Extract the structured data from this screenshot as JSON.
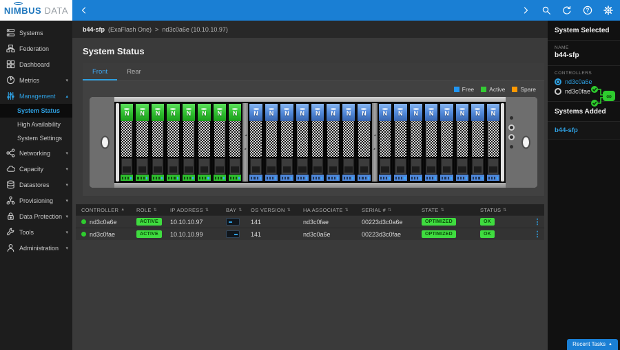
{
  "colors": {
    "topbar_blue": "#1a7fd4",
    "accent_blue": "#2e9fe0",
    "free": "#4f87d9",
    "active": "#2ebe2e",
    "spare": "#ff9800",
    "legend_free": "#2196f3",
    "legend_active": "#33cc33",
    "legend_spare": "#ff9800"
  },
  "brand": {
    "primary": "NIMBUS",
    "secondary": "DATA"
  },
  "topbar": {
    "collapse_icon": "chevron-left",
    "icons": [
      {
        "name": "chevron-right"
      },
      {
        "name": "search"
      },
      {
        "name": "refresh"
      },
      {
        "name": "help"
      },
      {
        "name": "settings"
      }
    ]
  },
  "sidebar": {
    "items": [
      {
        "id": "systems",
        "label": "Systems",
        "icon": "systems"
      },
      {
        "id": "federation",
        "label": "Federation",
        "icon": "federation"
      },
      {
        "id": "dashboard",
        "label": "Dashboard",
        "icon": "dashboard"
      },
      {
        "id": "metrics",
        "label": "Metrics",
        "icon": "metrics",
        "expandable": true,
        "expanded": false
      },
      {
        "id": "management",
        "label": "Management",
        "icon": "management",
        "expandable": true,
        "expanded": true,
        "active": true,
        "children": [
          {
            "id": "system-status",
            "label": "System Status",
            "active": true
          },
          {
            "id": "high-availability",
            "label": "High Availability"
          },
          {
            "id": "system-settings",
            "label": "System Settings"
          }
        ]
      },
      {
        "id": "networking",
        "label": "Networking",
        "icon": "networking",
        "expandable": true
      },
      {
        "id": "capacity",
        "label": "Capacity",
        "icon": "capacity",
        "expandable": true
      },
      {
        "id": "datastores",
        "label": "Datastores",
        "icon": "datastores",
        "expandable": true
      },
      {
        "id": "provisioning",
        "label": "Provisioning",
        "icon": "provisioning",
        "expandable": true
      },
      {
        "id": "data-protection",
        "label": "Data Protection",
        "icon": "data-protection",
        "expandable": true
      },
      {
        "id": "tools",
        "label": "Tools",
        "icon": "tools",
        "expandable": true
      },
      {
        "id": "administration",
        "label": "Administration",
        "icon": "administration",
        "expandable": true
      }
    ]
  },
  "breadcrumb": {
    "system": "b44-sfp",
    "system_suffix": "(ExaFlash One)",
    "separator": ">",
    "controller": "nd3c0a6e (10.10.10.97)"
  },
  "page": {
    "title": "System Status"
  },
  "tabs": [
    {
      "label": "Front",
      "active": true
    },
    {
      "label": "Rear",
      "active": false
    }
  ],
  "legend": [
    {
      "label": "Free",
      "state": "free"
    },
    {
      "label": "Active",
      "state": "active"
    },
    {
      "label": "Spare",
      "state": "spare"
    }
  ],
  "enclosure": {
    "drive_label": "N",
    "groups": [
      {
        "bays": 8,
        "state": "active"
      },
      {
        "bays": 8,
        "state": "free"
      },
      {
        "bays": 8,
        "state": "free"
      }
    ]
  },
  "table": {
    "columns": [
      {
        "label": "CONTROLLER",
        "sort": "asc"
      },
      {
        "label": "ROLE",
        "sort": "both"
      },
      {
        "label": "IP ADDRESS",
        "sort": "both"
      },
      {
        "label": "BAY",
        "sort": "both"
      },
      {
        "label": "OS VERSION",
        "sort": "both"
      },
      {
        "label": "HA ASSOCIATE",
        "sort": "both"
      },
      {
        "label": "SERIAL #",
        "sort": "both"
      },
      {
        "label": "STATE",
        "sort": "both"
      },
      {
        "label": "STATUS",
        "sort": "both"
      }
    ],
    "rows": [
      {
        "controller": "nd3c0a6e",
        "role": "ACTIVE",
        "ip": "10.10.10.97",
        "bay_marker": "left",
        "os_version": "141",
        "ha_associate": "nd3c0fae",
        "serial": "00223d3c0a6e",
        "state": "OPTIMIZED",
        "status": "OK"
      },
      {
        "controller": "nd3c0fae",
        "role": "ACTIVE",
        "ip": "10.10.10.99",
        "bay_marker": "right",
        "os_version": "141",
        "ha_associate": "nd3c0a6e",
        "serial": "00223d3c0fae",
        "state": "OPTIMIZED",
        "status": "OK"
      }
    ]
  },
  "right_panel": {
    "selected_header": "System Selected",
    "name_label": "NAME",
    "name": "b44-sfp",
    "controllers_label": "CONTROLLERS",
    "controllers": [
      {
        "name": "nd3c0a6e",
        "selected": true
      },
      {
        "name": "nd3c0fae",
        "selected": false
      }
    ],
    "ha_symbol": "∞",
    "added_header": "Systems Added",
    "added": [
      {
        "name": "b44-sfp"
      }
    ]
  },
  "recent_tasks": {
    "label": "Recent Tasks"
  }
}
